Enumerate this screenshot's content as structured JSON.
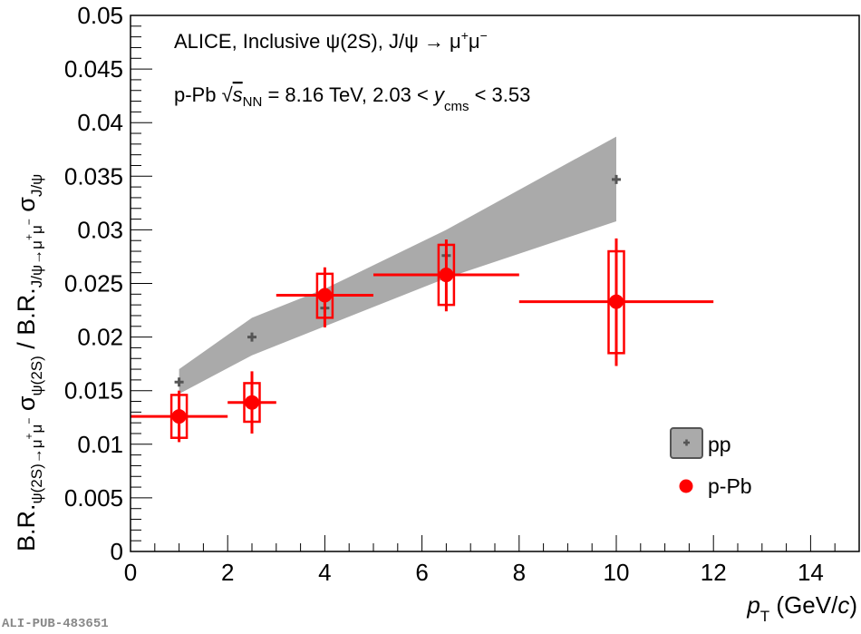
{
  "chart_data": {
    "type": "scatter",
    "title_lines": [
      "ALICE, Inclusive ψ(2S), J/ψ → μ⁺μ⁻",
      "p-Pb √s_NN = 8.16 TeV, 2.03 < y_cms < 3.53"
    ],
    "annotation": {
      "line1": "ALICE, Inclusive ψ(2S), J/ψ → μ",
      "line1_sup1": "+",
      "line1_mu": "μ",
      "line1_sup2": "−",
      "line2_a": "p-Pb ",
      "line2_sqrt": "√",
      "line2_s": "s",
      "line2_nn": "NN",
      "line2_b": " = 8.16 TeV, 2.03 < ",
      "line2_y": "y",
      "line2_cms": "cms",
      "line2_c": " < 3.53"
    },
    "xlabel": "p_T (GeV/c)",
    "xlabel_parts": {
      "p": "p",
      "T": "T",
      "rest": " (GeV/",
      "c": "c",
      "close": ")"
    },
    "ylabel": "B.R.ψ(2S)→μ⁺μ⁻ σψ(2S) / B.R.J/ψ→μ⁺μ⁻ σJ/ψ",
    "xlim": [
      0,
      15
    ],
    "ylim": [
      0,
      0.05
    ],
    "x_ticks": [
      "0",
      "2",
      "4",
      "6",
      "8",
      "10",
      "12",
      "14"
    ],
    "y_ticks": [
      "0",
      "0.005",
      "0.01",
      "0.015",
      "0.02",
      "0.025",
      "0.03",
      "0.035",
      "0.04",
      "0.045",
      "0.05"
    ],
    "grid": false,
    "legend_position": "bottom-right",
    "series": [
      {
        "name": "pp",
        "color": "#555555",
        "band_color": "#aaaaaa",
        "points": [
          {
            "x": 1.0,
            "y": 0.0158,
            "band_lo": 0.0147,
            "band_hi": 0.017
          },
          {
            "x": 2.5,
            "y": 0.02,
            "band_lo": 0.0183,
            "band_hi": 0.0218
          },
          {
            "x": 4.0,
            "y": 0.0227,
            "band_lo": 0.021,
            "band_hi": 0.0245
          },
          {
            "x": 6.5,
            "y": 0.0276,
            "band_lo": 0.0255,
            "band_hi": 0.03
          },
          {
            "x": 10.0,
            "y": 0.0347,
            "band_lo": 0.0308,
            "band_hi": 0.0387
          }
        ]
      },
      {
        "name": "p-Pb",
        "color": "#ff0000",
        "points": [
          {
            "x": 1.0,
            "y": 0.0126,
            "xlo": 0,
            "xhi": 2,
            "stat_lo": 0.0102,
            "stat_hi": 0.015,
            "sys_lo": 0.0106,
            "sys_hi": 0.0146
          },
          {
            "x": 2.5,
            "y": 0.0139,
            "xlo": 2,
            "xhi": 3,
            "stat_lo": 0.011,
            "stat_hi": 0.0168,
            "sys_lo": 0.0121,
            "sys_hi": 0.0157
          },
          {
            "x": 4.0,
            "y": 0.0239,
            "xlo": 3,
            "xhi": 5,
            "stat_lo": 0.0209,
            "stat_hi": 0.0265,
            "sys_lo": 0.0218,
            "sys_hi": 0.0259
          },
          {
            "x": 6.5,
            "y": 0.0258,
            "xlo": 5,
            "xhi": 8,
            "stat_lo": 0.0224,
            "stat_hi": 0.0291,
            "sys_lo": 0.023,
            "sys_hi": 0.0286
          },
          {
            "x": 10.0,
            "y": 0.0233,
            "xlo": 8,
            "xhi": 12,
            "stat_lo": 0.0173,
            "stat_hi": 0.0292,
            "sys_lo": 0.0185,
            "sys_hi": 0.028
          }
        ]
      }
    ]
  },
  "legend": {
    "pp": "pp",
    "ppb": "p-Pb"
  },
  "watermark": "ALI-PUB-483651"
}
